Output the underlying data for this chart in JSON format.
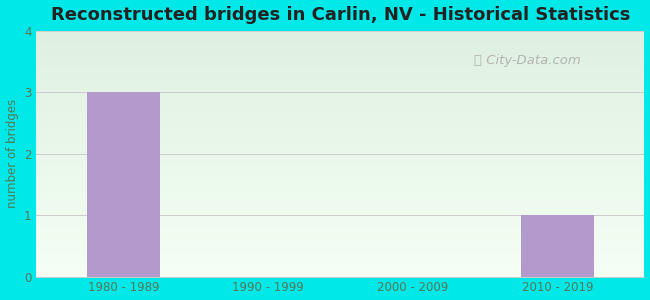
{
  "title": "Reconstructed bridges in Carlin, NV - Historical Statistics",
  "categories": [
    "1980 - 1989",
    "1990 - 1999",
    "2000 - 2009",
    "2010 - 2019"
  ],
  "values": [
    3,
    0,
    0,
    1
  ],
  "bar_color": "#b399cc",
  "ylabel": "number of bridges",
  "ylim": [
    0,
    4
  ],
  "yticks": [
    0,
    1,
    2,
    3,
    4
  ],
  "bg_outer": "#00e8e8",
  "bg_inner_top": "#dff0e0",
  "bg_inner_bottom": "#f5fff5",
  "title_fontsize": 13,
  "title_color": "#222222",
  "axis_label_color": "#557755",
  "tick_label_color": "#557755",
  "grid_color": "#cccccc",
  "watermark_text": "City-Data.com",
  "watermark_color": "#aaaaaa"
}
